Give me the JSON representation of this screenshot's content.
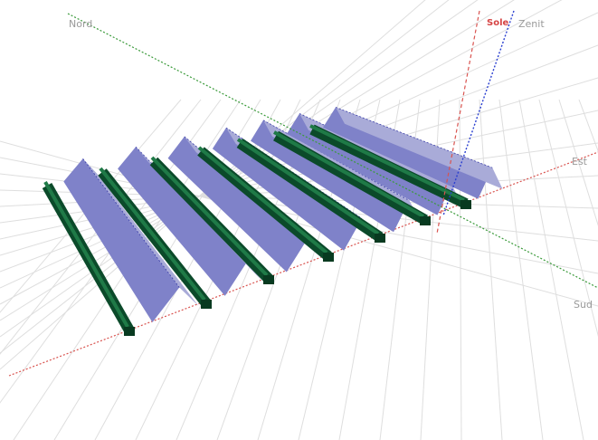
{
  "labels": {
    "north": "Nord",
    "sun": "Sole",
    "zenith": "Zenit",
    "east": "Est",
    "south": "Sud"
  }
}
